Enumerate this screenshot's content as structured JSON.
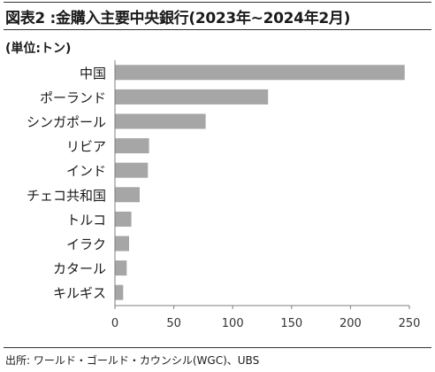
{
  "header": {
    "title": "図表2 :金購入主要中央銀行(2023年~2024年2月)",
    "unit": "(単位:トン)"
  },
  "footer": {
    "source": "出所: ワールド・ゴールド・カウンシル(WGC)、UBS"
  },
  "colors": {
    "bar": "#a6a6a6",
    "axis": "#7f7f7f",
    "rule": "#333333"
  },
  "chart_data": {
    "type": "bar",
    "orientation": "horizontal",
    "title": "図表2 :金購入主要中央銀行(2023年~2024年2月)",
    "ylabel": "(単位:トン)",
    "categories": [
      "中国",
      "ポーランド",
      "シンガポール",
      "リビア",
      "インド",
      "チェコ共和国",
      "トルコ",
      "イラク",
      "カタール",
      "キルギス"
    ],
    "values": [
      246,
      130,
      77,
      29,
      28,
      21,
      14,
      12,
      10,
      7
    ],
    "xlim": [
      0,
      250
    ],
    "xticks": [
      0,
      50,
      100,
      150,
      200,
      250
    ],
    "grid": false,
    "legend": "none"
  }
}
